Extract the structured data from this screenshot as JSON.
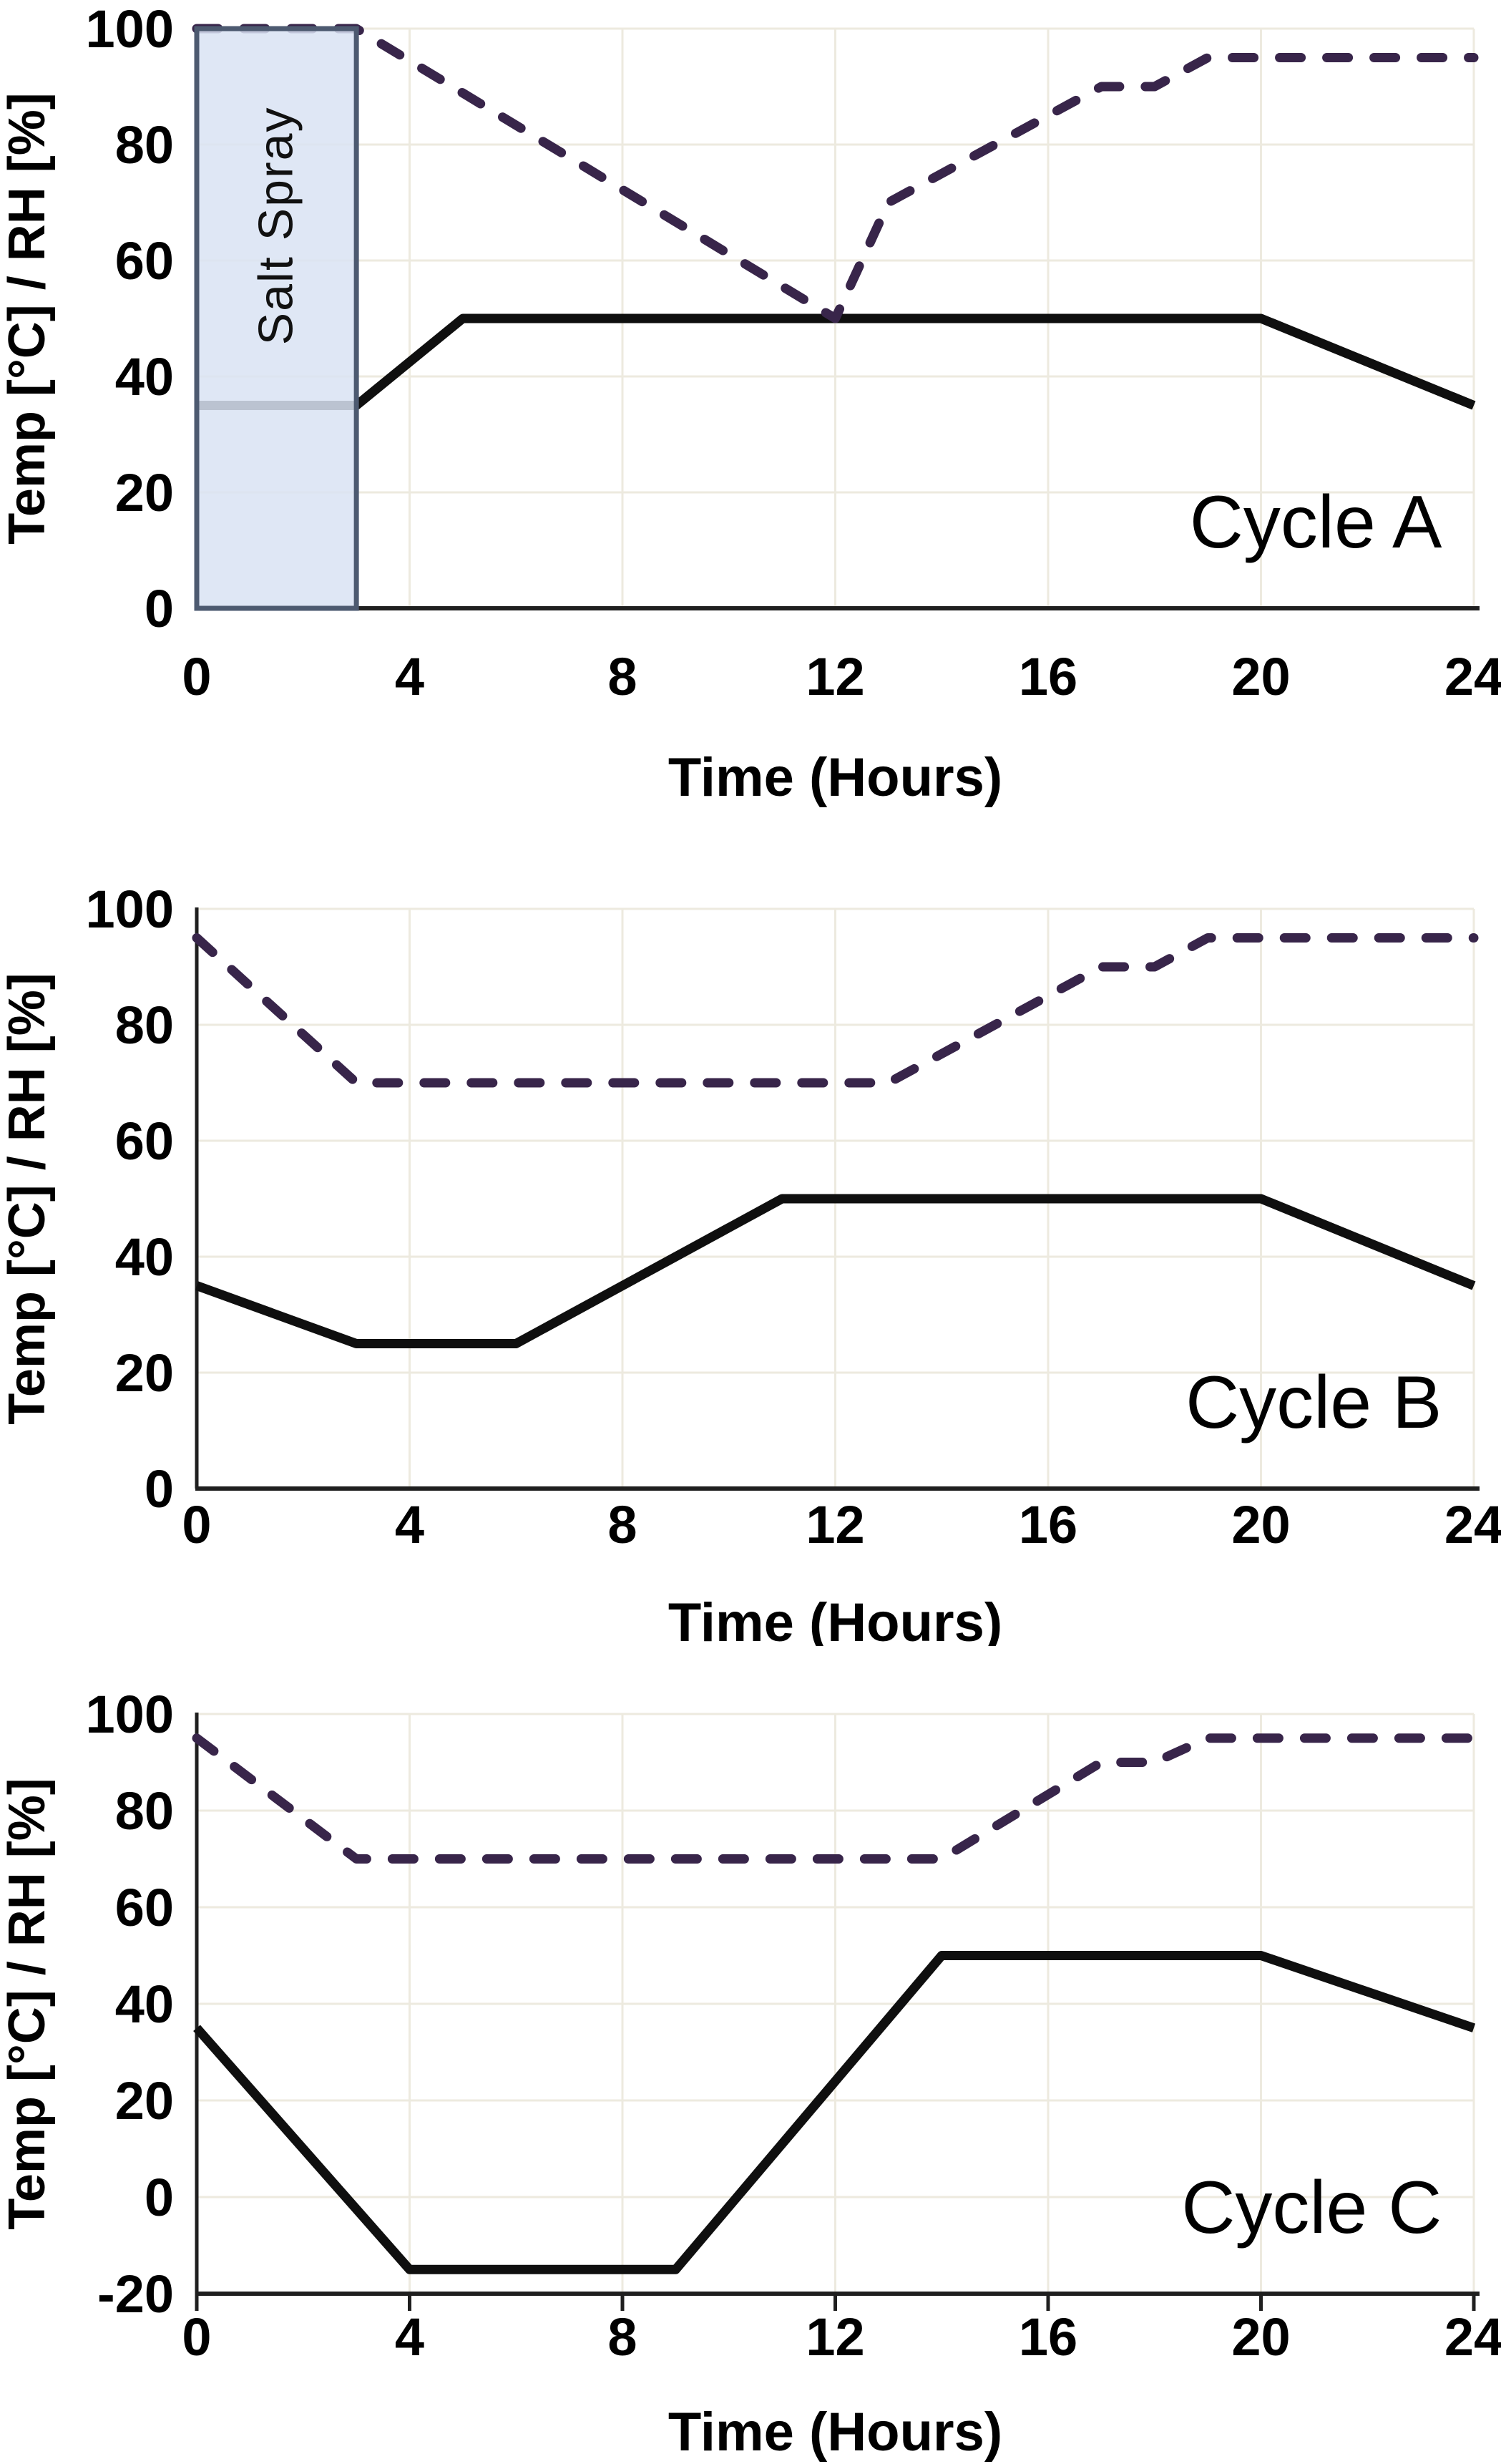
{
  "figure": {
    "description": "Three stacked environmental test cycle charts",
    "x_axis_label": "Time (Hours)",
    "y_axis_label": "Temp [°C] / RH [%]"
  },
  "styles": {
    "temp_color": "#0f0f0f",
    "rh_color": "#38254a",
    "grid_color": "#edeadf",
    "axis_color": "#1f1f1f",
    "label_color": "#000000",
    "salt_spray_fill": "#d9e3f3",
    "salt_spray_border": "#4d5a70",
    "salt_spray_text_color": "#111111"
  },
  "chart_data": [
    {
      "type": "line",
      "title": "Cycle A",
      "xlabel": "Time (Hours)",
      "ylabel": "Temp [°C] / RH [%]",
      "xlim": [
        0,
        24
      ],
      "ylim": [
        0,
        100
      ],
      "xticks": [
        0,
        4,
        8,
        12,
        16,
        20,
        24
      ],
      "yticks": [
        0,
        20,
        40,
        60,
        80,
        100
      ],
      "x_tick_marks_visible": false,
      "grid": true,
      "legend": "none",
      "annotation": {
        "label": "Salt Spray",
        "x_range": [
          0,
          3
        ],
        "y_range": [
          0,
          100
        ]
      },
      "series": [
        {
          "name": "Temperature [°C]",
          "style": "solid",
          "points": [
            [
              0,
              35
            ],
            [
              3,
              35
            ],
            [
              5,
              50
            ],
            [
              20,
              50
            ],
            [
              24,
              35
            ]
          ]
        },
        {
          "name": "Relative Humidity [%]",
          "style": "dashed",
          "points": [
            [
              0,
              100
            ],
            [
              3,
              100
            ],
            [
              12,
              50
            ],
            [
              13,
              70
            ],
            [
              17,
              90
            ],
            [
              18,
              90
            ],
            [
              19,
              95
            ],
            [
              24,
              95
            ]
          ]
        }
      ]
    },
    {
      "type": "line",
      "title": "Cycle B",
      "xlabel": "Time (Hours)",
      "ylabel": "Temp [°C] / RH [%]",
      "xlim": [
        0,
        24
      ],
      "ylim": [
        0,
        100
      ],
      "xticks": [
        0,
        4,
        8,
        12,
        16,
        20,
        24
      ],
      "yticks": [
        0,
        20,
        40,
        60,
        80,
        100
      ],
      "x_tick_marks_visible": false,
      "grid": true,
      "legend": "none",
      "annotation": null,
      "series": [
        {
          "name": "Temperature [°C]",
          "style": "solid",
          "points": [
            [
              0,
              35
            ],
            [
              3,
              25
            ],
            [
              6,
              25
            ],
            [
              11,
              50
            ],
            [
              20,
              50
            ],
            [
              24,
              35
            ]
          ]
        },
        {
          "name": "Relative Humidity [%]",
          "style": "dashed",
          "points": [
            [
              0,
              95
            ],
            [
              3,
              70
            ],
            [
              13,
              70
            ],
            [
              17,
              90
            ],
            [
              18,
              90
            ],
            [
              19,
              95
            ],
            [
              24,
              95
            ]
          ]
        }
      ]
    },
    {
      "type": "line",
      "title": "Cycle C",
      "xlabel": "Time (Hours)",
      "ylabel": "Temp [°C] / RH [%]",
      "xlim": [
        0,
        24
      ],
      "ylim": [
        -20,
        100
      ],
      "xticks": [
        0,
        4,
        8,
        12,
        16,
        20,
        24
      ],
      "yticks": [
        -20,
        0,
        20,
        40,
        60,
        80,
        100
      ],
      "x_tick_marks_visible": true,
      "grid": true,
      "legend": "none",
      "annotation": null,
      "series": [
        {
          "name": "Temperature [°C]",
          "style": "solid",
          "points": [
            [
              0,
              35
            ],
            [
              4,
              -15
            ],
            [
              9,
              -15
            ],
            [
              14,
              50
            ],
            [
              20,
              50
            ],
            [
              24,
              35
            ]
          ]
        },
        {
          "name": "Relative Humidity [%]",
          "style": "dashed",
          "points": [
            [
              0,
              95
            ],
            [
              3,
              70
            ],
            [
              14,
              70
            ],
            [
              17,
              90
            ],
            [
              18,
              90
            ],
            [
              19,
              95
            ],
            [
              24,
              95
            ]
          ]
        }
      ]
    }
  ]
}
